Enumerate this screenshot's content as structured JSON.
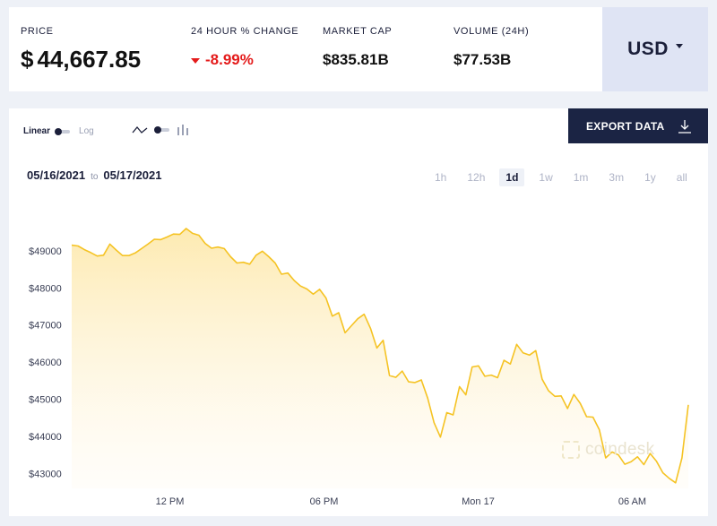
{
  "stats": {
    "price_label": "PRICE",
    "price_currency": "$",
    "price_value": "44,667.85",
    "change_label": "24 HOUR % CHANGE",
    "change_value": "-8.99%",
    "marketcap_label": "MARKET CAP",
    "marketcap_value": "$835.81B",
    "volume_label": "VOLUME (24H)",
    "volume_value": "$77.53B"
  },
  "currency": {
    "code": "USD"
  },
  "controls": {
    "linear_label": "Linear",
    "log_label": "Log",
    "export_label": "EXPORT DATA",
    "date_from": "05/16/2021",
    "date_to_word": "to",
    "date_to": "05/17/2021",
    "periods": [
      "1h",
      "12h",
      "1d",
      "1w",
      "1m",
      "3m",
      "1y",
      "all"
    ],
    "active_period": "1d"
  },
  "watermark": "coindesk",
  "colors": {
    "line": "#f5c324",
    "down": "#e41b1b",
    "button": "#1b2444",
    "accent_bg": "#dfe4f4"
  },
  "chart_data": {
    "type": "area",
    "ylim": [
      42600,
      50300
    ],
    "yticks": [
      43000,
      44000,
      45000,
      46000,
      47000,
      48000,
      49000
    ],
    "ytick_labels": [
      "$43000",
      "$44000",
      "$45000",
      "$46000",
      "$47000",
      "$48000",
      "$49000"
    ],
    "xticks": [
      {
        "pos": 3.82,
        "label": "12 PM"
      },
      {
        "pos": 9.82,
        "label": "06 PM"
      },
      {
        "pos": 15.82,
        "label": "Mon 17"
      },
      {
        "pos": 21.82,
        "label": "06 AM"
      }
    ],
    "x_unit_note": "",
    "values": [
      49150,
      49130,
      49030,
      48950,
      48860,
      48880,
      49180,
      49020,
      48870,
      48870,
      48940,
      49060,
      49180,
      49310,
      49300,
      49370,
      49450,
      49440,
      49600,
      49470,
      49420,
      49200,
      49070,
      49100,
      49060,
      48840,
      48670,
      48690,
      48640,
      48880,
      48990,
      48840,
      48670,
      48370,
      48400,
      48200,
      48050,
      47970,
      47830,
      47960,
      47730,
      47240,
      47330,
      46790,
      46980,
      47170,
      47290,
      46910,
      46380,
      46590,
      45640,
      45590,
      45760,
      45470,
      45450,
      45520,
      45030,
      44370,
      43980,
      44640,
      44580,
      45340,
      45120,
      45870,
      45900,
      45620,
      45650,
      45580,
      46050,
      45950,
      46480,
      46250,
      46190,
      46310,
      45540,
      45230,
      45080,
      45090,
      44750,
      45130,
      44890,
      44530,
      44520,
      44180,
      43420,
      43580,
      43500,
      43250,
      43320,
      43450,
      43240,
      43540,
      43330,
      43020,
      42870,
      42750,
      43420,
      44850
    ]
  }
}
